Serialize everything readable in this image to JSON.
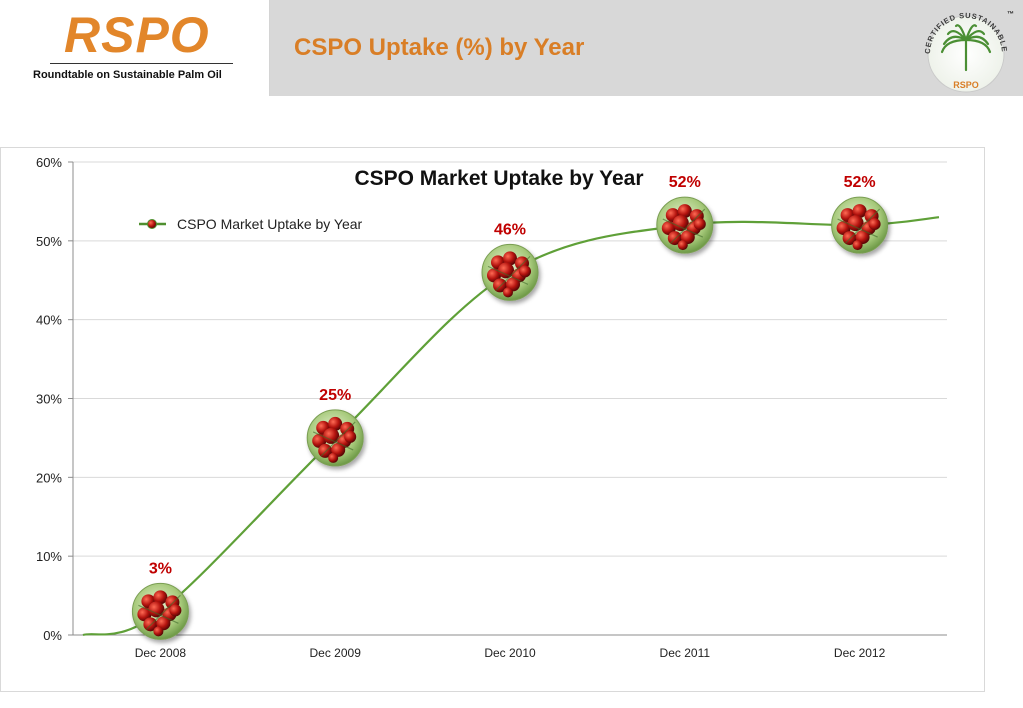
{
  "header": {
    "logo": "RSPO",
    "logo_subtitle": "Roundtable on Sustainable Palm Oil",
    "title": "CSPO Uptake (%) by Year",
    "seal": {
      "ring_text": "CERTIFIED SUSTAINABLE PALM OIL",
      "center_text": "RSPO",
      "tm": "™"
    }
  },
  "chart_data": {
    "type": "line",
    "title": "CSPO Market Uptake by Year",
    "xlabel": "",
    "ylabel": "",
    "categories": [
      "Dec 2008",
      "Dec 2009",
      "Dec 2010",
      "Dec 2011",
      "Dec 2012"
    ],
    "series": [
      {
        "name": "CSPO Market Uptake by Year",
        "values": [
          3,
          25,
          46,
          52,
          52
        ],
        "color": "#5fa038"
      }
    ],
    "data_labels": [
      "3%",
      "25%",
      "46%",
      "52%",
      "52%"
    ],
    "data_label_color": "#c00000",
    "marker": "palm-fruit-bunch",
    "ylim": [
      0,
      60
    ],
    "yticks": [
      "0%",
      "10%",
      "20%",
      "30%",
      "40%",
      "50%",
      "60%"
    ],
    "grid": true,
    "legend": "top-left"
  }
}
